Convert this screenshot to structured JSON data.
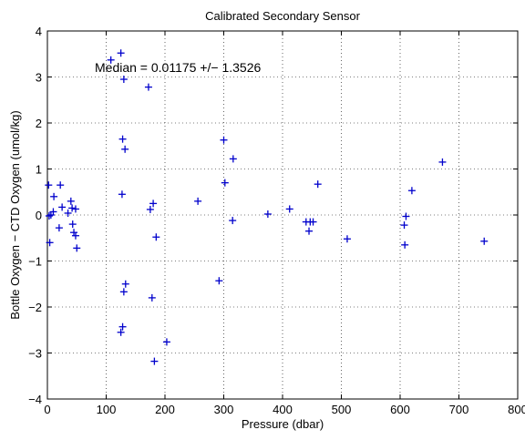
{
  "chart_data": {
    "type": "scatter",
    "title": "Calibrated Secondary Sensor",
    "xlabel": "Pressure (dbar)",
    "ylabel": "Bottle Oxygen − CTD Oxygen (umol/kg)",
    "annotation": "Median = 0.01175 +/− 1.3526",
    "xlim": [
      0,
      800
    ],
    "ylim": [
      -4,
      4
    ],
    "xticks": [
      0,
      100,
      200,
      300,
      400,
      500,
      600,
      700,
      800
    ],
    "yticks": [
      -4,
      -3,
      -2,
      -1,
      0,
      1,
      2,
      3,
      4
    ],
    "ytick_labels": [
      "−4",
      "−3",
      "−2",
      "−1",
      "0",
      "1",
      "2",
      "3",
      "4"
    ],
    "grid": true,
    "marker": "+",
    "marker_color": "#0000cc",
    "points": [
      [
        2,
        0.65
      ],
      [
        3,
        -0.02
      ],
      [
        4,
        -0.6
      ],
      [
        6,
        0.0
      ],
      [
        10,
        0.07
      ],
      [
        11,
        0.4
      ],
      [
        20,
        -0.28
      ],
      [
        22,
        0.65
      ],
      [
        25,
        0.17
      ],
      [
        35,
        0.04
      ],
      [
        40,
        0.3
      ],
      [
        42,
        0.15
      ],
      [
        43,
        -0.2
      ],
      [
        45,
        -0.38
      ],
      [
        48,
        0.13
      ],
      [
        48,
        -0.45
      ],
      [
        50,
        -0.72
      ],
      [
        108,
        3.37
      ],
      [
        125,
        3.52
      ],
      [
        127,
        0.45
      ],
      [
        128,
        1.65
      ],
      [
        130,
        2.95
      ],
      [
        130,
        -1.67
      ],
      [
        132,
        1.43
      ],
      [
        133,
        -1.5
      ],
      [
        125,
        -2.55
      ],
      [
        128,
        -2.43
      ],
      [
        172,
        2.78
      ],
      [
        175,
        0.12
      ],
      [
        178,
        -1.8
      ],
      [
        180,
        0.25
      ],
      [
        182,
        -3.18
      ],
      [
        185,
        -0.48
      ],
      [
        203,
        -2.76
      ],
      [
        256,
        0.3
      ],
      [
        292,
        -1.43
      ],
      [
        300,
        1.63
      ],
      [
        302,
        0.7
      ],
      [
        315,
        -0.12
      ],
      [
        316,
        1.22
      ],
      [
        375,
        0.02
      ],
      [
        412,
        0.13
      ],
      [
        440,
        -0.15
      ],
      [
        445,
        -0.35
      ],
      [
        447,
        -0.15
      ],
      [
        452,
        -0.15
      ],
      [
        460,
        0.67
      ],
      [
        510,
        -0.52
      ],
      [
        607,
        -0.22
      ],
      [
        608,
        -0.65
      ],
      [
        610,
        -0.03
      ],
      [
        620,
        0.53
      ],
      [
        672,
        1.15
      ],
      [
        743,
        -0.57
      ]
    ]
  }
}
